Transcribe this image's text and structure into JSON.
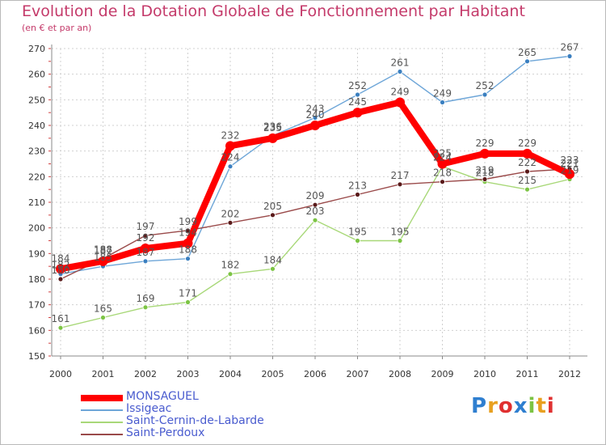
{
  "chart_data": {
    "type": "line",
    "title": "Evolution de la Dotation Globale de Fonctionnement par Habitant",
    "subtitle": "(en € et par an)",
    "xlabel": "",
    "ylabel": "",
    "ylim": [
      150,
      270
    ],
    "yticks": [
      150,
      160,
      170,
      180,
      190,
      200,
      210,
      220,
      230,
      240,
      250,
      260,
      270
    ],
    "x": [
      2000,
      2001,
      2002,
      2003,
      2004,
      2005,
      2006,
      2007,
      2008,
      2009,
      2010,
      2011,
      2012
    ],
    "grid": true,
    "legend": "bottom-left",
    "series": [
      {
        "name": "Issigeac",
        "color": "#6ea6d8",
        "marker": "#3a7fc0",
        "values": [
          182,
          185,
          187,
          188,
          224,
          236,
          243,
          252,
          261,
          249,
          252,
          265,
          267
        ]
      },
      {
        "name": "Saint-Cernin-de-Labarde",
        "color": "#a8d878",
        "marker": "#7cc444",
        "values": [
          161,
          165,
          169,
          171,
          182,
          184,
          203,
          195,
          195,
          224,
          218,
          215,
          219
        ]
      },
      {
        "name": "Saint-Perdoux",
        "color": "#9a4a4a",
        "marker": "#5a1a1a",
        "values": [
          180,
          188,
          197,
          199,
          202,
          205,
          209,
          213,
          217,
          218,
          219,
          222,
          223
        ]
      },
      {
        "name": "MONSAGUEL",
        "color": "#ff0000",
        "marker": "#ff0000",
        "values": [
          184,
          187,
          192,
          194,
          232,
          235,
          240,
          245,
          249,
          225,
          229,
          229,
          221
        ]
      }
    ],
    "legend_order": [
      "MONSAGUEL",
      "Issigeac",
      "Saint-Cernin-de-Labarde",
      "Saint-Perdoux"
    ]
  },
  "brand": {
    "letters": [
      "P",
      "r",
      "o",
      "x",
      "i",
      "t",
      "i"
    ],
    "colors": [
      "#2f7fd0",
      "#e8a020",
      "#e03030",
      "#2f7fd0",
      "#7cc444",
      "#e8a020",
      "#e03030"
    ]
  }
}
